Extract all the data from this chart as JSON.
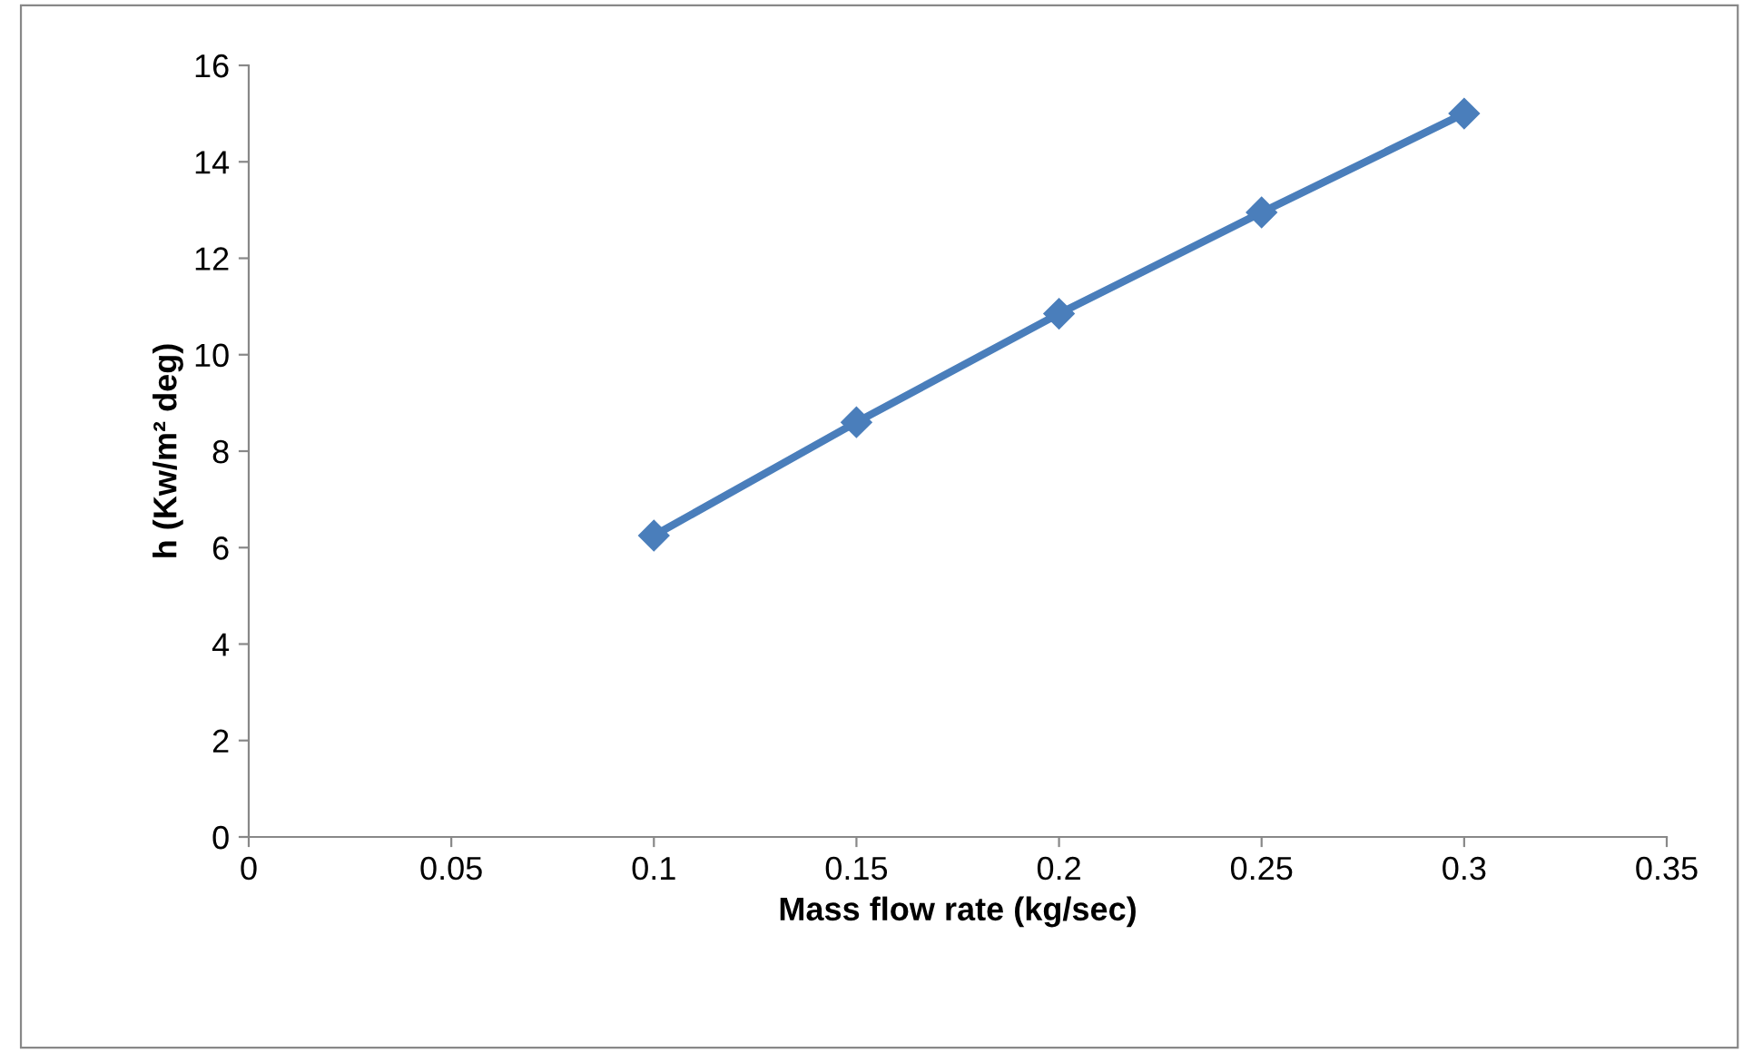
{
  "chart_data": {
    "type": "line",
    "xlabel": "Mass flow rate (kg/sec)",
    "ylabel": "h (Kw/m² deg)",
    "x": [
      0.1,
      0.15,
      0.2,
      0.25,
      0.3
    ],
    "series": [
      {
        "color": "#4a7ebb",
        "values": [
          6.25,
          8.6,
          10.85,
          12.95,
          15.0
        ]
      }
    ],
    "xlim": [
      0,
      0.35
    ],
    "xticks": [
      0,
      0.05,
      0.1,
      0.15,
      0.2,
      0.25,
      0.3,
      0.35
    ],
    "ylim": [
      0,
      16
    ],
    "yticks": [
      0,
      2,
      4,
      6,
      8,
      10,
      12,
      14,
      16
    ],
    "grid": false,
    "legend": false,
    "marker": "diamond",
    "line_style": "solid"
  }
}
